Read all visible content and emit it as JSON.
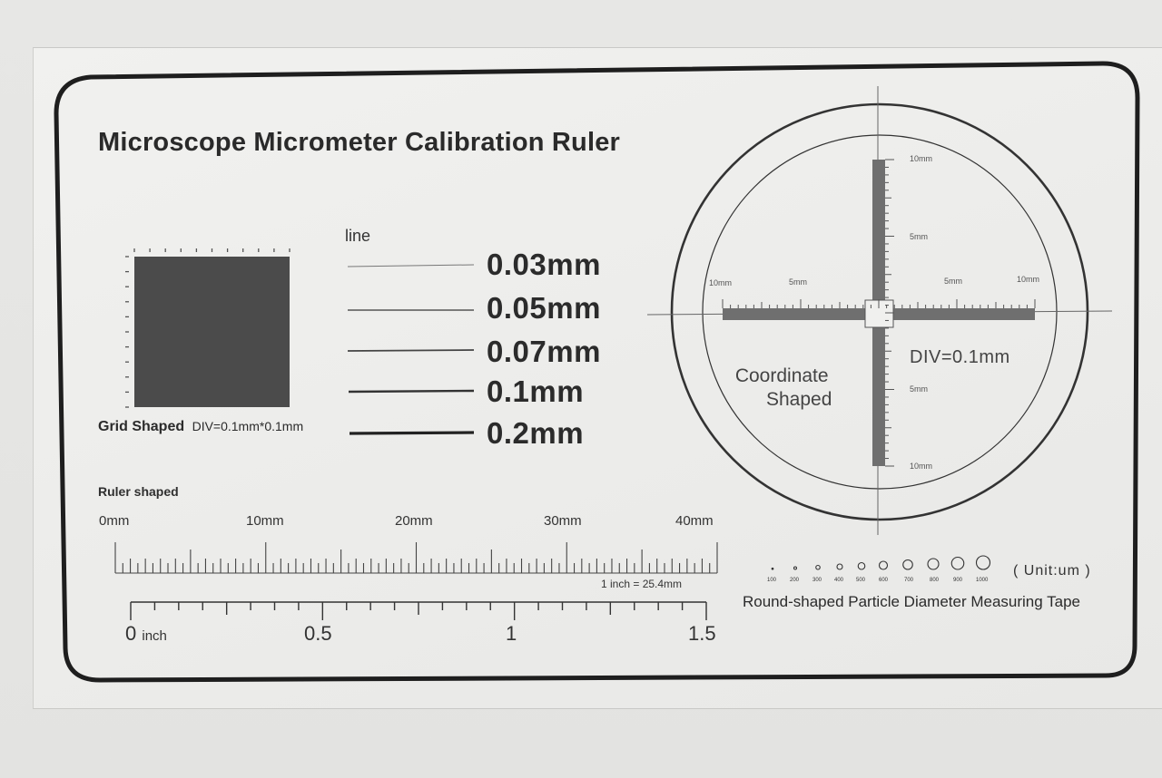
{
  "title": "Microscope Micrometer Calibration Ruler",
  "line_section": {
    "heading": "line",
    "widths": [
      "0.03mm",
      "0.05mm",
      "0.07mm",
      "0.1mm",
      "0.2mm"
    ]
  },
  "grid": {
    "name": "Grid Shaped",
    "div": "DIV=0.1mm*0.1mm"
  },
  "ruler": {
    "caption": "Ruler shaped",
    "mm_labels": [
      "0mm",
      "10mm",
      "20mm",
      "30mm",
      "40mm"
    ],
    "inch_note": "1 inch = 25.4mm",
    "inch_zero": "0",
    "inch_unit": "inch",
    "inch_labels": [
      "0.5",
      "1",
      "1.5"
    ]
  },
  "coordinate": {
    "label_line1": "Coordinate",
    "label_line2": "Shaped",
    "div": "DIV=0.1mm",
    "axis_labels": {
      "top": "10mm",
      "upper": "5mm",
      "left_outer": "10mm",
      "left_inner": "5mm",
      "right_inner": "5mm",
      "right_outer": "10mm",
      "lower": "5mm",
      "bottom": "10mm"
    }
  },
  "particles": {
    "unit": "( Unit:um )",
    "sizes": [
      "100",
      "200",
      "300",
      "400",
      "500",
      "600",
      "700",
      "800",
      "900",
      "1000"
    ],
    "caption": "Round-shaped Particle Diameter Measuring Tape"
  }
}
